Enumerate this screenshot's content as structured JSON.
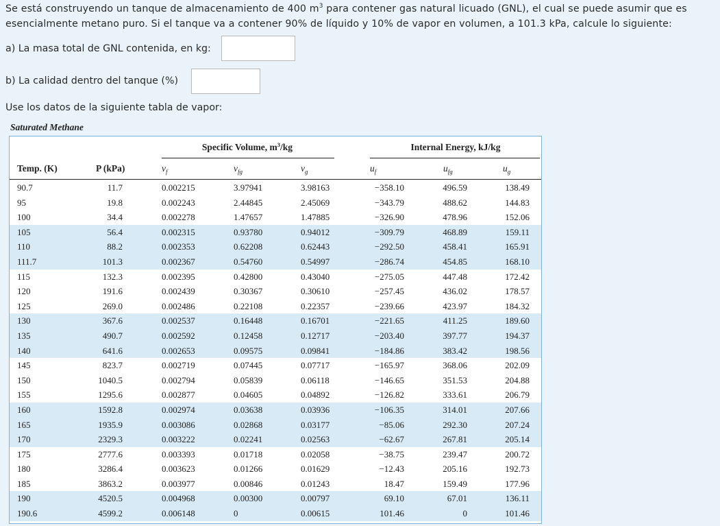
{
  "prompt": {
    "part1": "Se está construyendo un tanque de almacenamiento de 400 m",
    "sup": "3",
    "part2": " para contener gas natural licuado (GNL), el cual se puede asumir que es esencialmente metano puro. Si el tanque va a contener 90% de líquido y 10% de vapor en volumen, a 101.3 kPa, calcule lo siguiente:"
  },
  "questions": {
    "a_label": "a) La masa total de GNL contenida, en kg:",
    "a_value": "",
    "b_label": "b) La calidad dentro del tanque (%)",
    "b_value": ""
  },
  "intro": "Use los datos de la siguiente tabla de vapor:",
  "table": {
    "title": "Saturated Methane",
    "band_specific_volume": "Specific Volume, m",
    "band_specific_volume_sup": "3",
    "band_specific_volume_tail": "/kg",
    "band_internal_energy": "Internal Energy, kJ/kg",
    "headers": {
      "temp": "Temp. (K)",
      "pressure": "P (kPa)",
      "vf": "v",
      "vf_sub": "f",
      "vfg": "v",
      "vfg_sub": "fg",
      "vg": "v",
      "vg_sub": "g",
      "uf": "u",
      "uf_sub": "f",
      "ufg": "u",
      "ufg_sub": "fg",
      "ug": "u",
      "ug_sub": "g"
    },
    "rows": [
      [
        "90.7",
        "11.7",
        "0.002215",
        "3.97941",
        "3.98163",
        "−358.10",
        "496.59",
        "138.49"
      ],
      [
        "95",
        "19.8",
        "0.002243",
        "2.44845",
        "2.45069",
        "−343.79",
        "488.62",
        "144.83"
      ],
      [
        "100",
        "34.4",
        "0.002278",
        "1.47657",
        "1.47885",
        "−326.90",
        "478.96",
        "152.06"
      ],
      [
        "105",
        "56.4",
        "0.002315",
        "0.93780",
        "0.94012",
        "−309.79",
        "468.89",
        "159.11"
      ],
      [
        "110",
        "88.2",
        "0.002353",
        "0.62208",
        "0.62443",
        "−292.50",
        "458.41",
        "165.91"
      ],
      [
        "111.7",
        "101.3",
        "0.002367",
        "0.54760",
        "0.54997",
        "−286.74",
        "454.85",
        "168.10"
      ],
      [
        "115",
        "132.3",
        "0.002395",
        "0.42800",
        "0.43040",
        "−275.05",
        "447.48",
        "172.42"
      ],
      [
        "120",
        "191.6",
        "0.002439",
        "0.30367",
        "0.30610",
        "−257.45",
        "436.02",
        "178.57"
      ],
      [
        "125",
        "269.0",
        "0.002486",
        "0.22108",
        "0.22357",
        "−239.66",
        "423.97",
        "184.32"
      ],
      [
        "130",
        "367.6",
        "0.002537",
        "0.16448",
        "0.16701",
        "−221.65",
        "411.25",
        "189.60"
      ],
      [
        "135",
        "490.7",
        "0.002592",
        "0.12458",
        "0.12717",
        "−203.40",
        "397.77",
        "194.37"
      ],
      [
        "140",
        "641.6",
        "0.002653",
        "0.09575",
        "0.09841",
        "−184.86",
        "383.42",
        "198.56"
      ],
      [
        "145",
        "823.7",
        "0.002719",
        "0.07445",
        "0.07717",
        "−165.97",
        "368.06",
        "202.09"
      ],
      [
        "150",
        "1040.5",
        "0.002794",
        "0.05839",
        "0.06118",
        "−146.65",
        "351.53",
        "204.88"
      ],
      [
        "155",
        "1295.6",
        "0.002877",
        "0.04605",
        "0.04892",
        "−126.82",
        "333.61",
        "206.79"
      ],
      [
        "160",
        "1592.8",
        "0.002974",
        "0.03638",
        "0.03936",
        "−106.35",
        "314.01",
        "207.66"
      ],
      [
        "165",
        "1935.9",
        "0.003086",
        "0.02868",
        "0.03177",
        "−85.06",
        "292.30",
        "207.24"
      ],
      [
        "170",
        "2329.3",
        "0.003222",
        "0.02241",
        "0.02563",
        "−62.67",
        "267.81",
        "205.14"
      ],
      [
        "175",
        "2777.6",
        "0.003393",
        "0.01718",
        "0.02058",
        "−38.75",
        "239.47",
        "200.72"
      ],
      [
        "180",
        "3286.4",
        "0.003623",
        "0.01266",
        "0.01629",
        "−12.43",
        "205.16",
        "192.73"
      ],
      [
        "185",
        "3863.2",
        "0.003977",
        "0.00846",
        "0.01243",
        "18.47",
        "159.49",
        "177.96"
      ],
      [
        "190",
        "4520.5",
        "0.004968",
        "0.00300",
        "0.00797",
        "69.10",
        "67.01",
        "136.11"
      ],
      [
        "190.6",
        "4599.2",
        "0.006148",
        "0",
        "0.00615",
        "101.46",
        "0",
        "101.46"
      ]
    ],
    "shade_groups": [
      3,
      4,
      5,
      9,
      10,
      11,
      15,
      16,
      17,
      21,
      22
    ]
  }
}
